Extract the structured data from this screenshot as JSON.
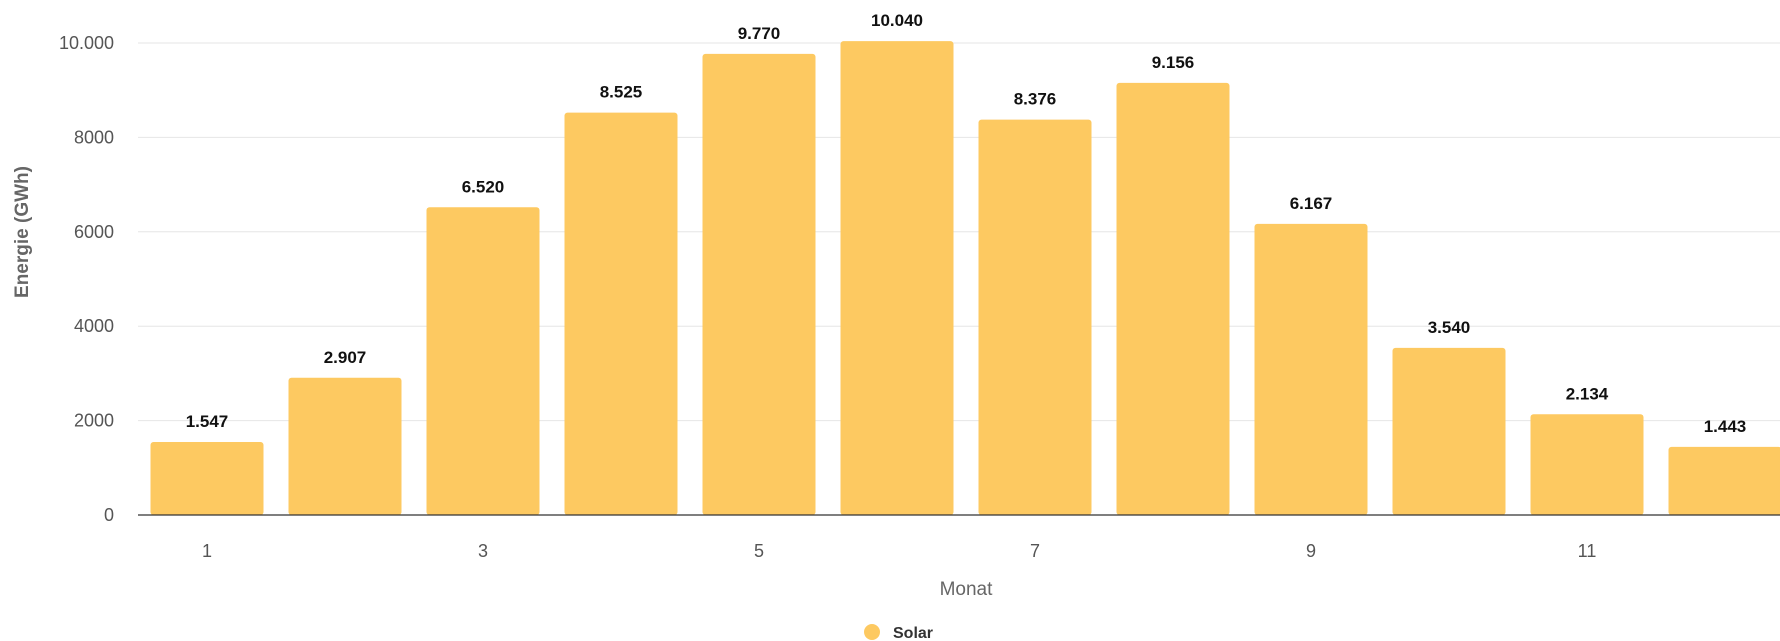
{
  "chart_data": {
    "type": "bar",
    "title": "",
    "xlabel": "Monat",
    "ylabel": "Energie (GWh)",
    "categories": [
      "1",
      "2",
      "3",
      "4",
      "5",
      "6",
      "7",
      "8",
      "9",
      "10",
      "11",
      "12"
    ],
    "x_tick_labels_shown": [
      "1",
      "",
      "3",
      "",
      "5",
      "",
      "7",
      "",
      "9",
      "",
      "11",
      ""
    ],
    "series": [
      {
        "name": "Solar",
        "color": "#fdc961",
        "values": [
          1547,
          2907,
          6520,
          8525,
          9770,
          10040,
          8376,
          9156,
          6167,
          3540,
          2134,
          1443
        ],
        "data_labels": [
          "1.547",
          "2.907",
          "6.520",
          "8.525",
          "9.770",
          "10.040",
          "8.376",
          "9.156",
          "6.167",
          "3.540",
          "2.134",
          "1.443"
        ]
      }
    ],
    "y_ticks": [
      0,
      2000,
      4000,
      6000,
      8000,
      10000
    ],
    "y_tick_labels": [
      "0",
      "2000",
      "4000",
      "6000",
      "8000",
      "10.000"
    ],
    "ylim": [
      0,
      10000
    ],
    "grid": true,
    "legend": {
      "position": "bottom-center",
      "entries": [
        "Solar"
      ]
    }
  }
}
